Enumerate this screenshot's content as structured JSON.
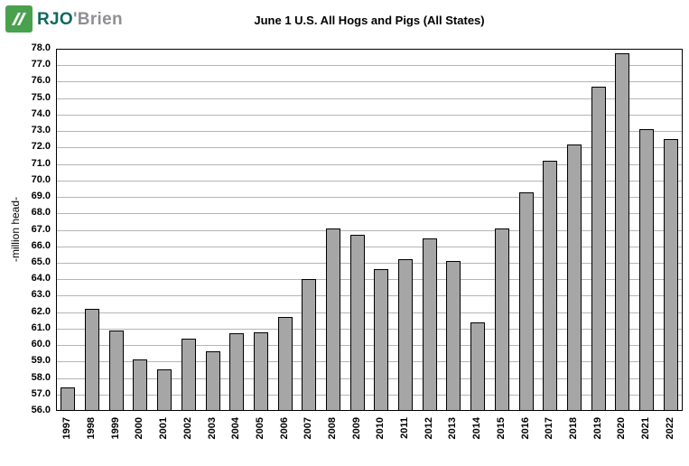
{
  "logo": {
    "text_primary": "RJO",
    "text_apostrophe": "'",
    "text_secondary": "Brien",
    "icon": "rjo-green-square-icon",
    "colors": {
      "icon_green": "#4aa14d",
      "text_teal": "#0f6a5e",
      "text_gray": "#8f9093"
    }
  },
  "chart_data": {
    "type": "bar",
    "title": "June 1 U.S. All Hogs and Pigs (All States)",
    "xlabel": "",
    "ylabel": "-million head-",
    "ylim": [
      56.0,
      78.0
    ],
    "ytick_step": 1.0,
    "grid": true,
    "legend": "none",
    "bar_color": "#a6a6a6",
    "bar_border_color": "#000000",
    "categories": [
      "1997",
      "1998",
      "1999",
      "2000",
      "2001",
      "2002",
      "2003",
      "2004",
      "2005",
      "2006",
      "2007",
      "2008",
      "2009",
      "2010",
      "2011",
      "2012",
      "2013",
      "2014",
      "2015",
      "2016",
      "2017",
      "2018",
      "2019",
      "2020",
      "2021",
      "2022"
    ],
    "values": [
      57.4,
      62.2,
      60.9,
      59.1,
      58.5,
      60.4,
      59.6,
      60.7,
      60.8,
      61.7,
      64.0,
      67.1,
      66.7,
      64.6,
      65.2,
      66.5,
      65.1,
      61.4,
      67.1,
      69.3,
      71.2,
      72.2,
      75.7,
      77.7,
      73.1,
      72.5
    ]
  }
}
